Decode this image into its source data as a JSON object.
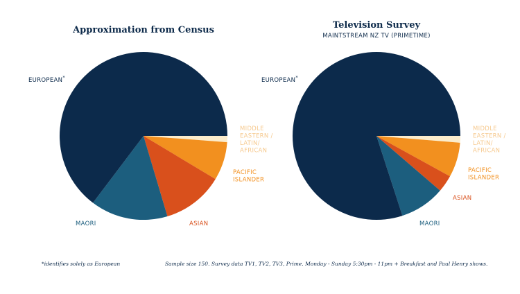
{
  "colors": {
    "european": "#0c2a4b",
    "maori": "#1c5e7e",
    "asian": "#d9501c",
    "pacific": "#f2901f",
    "mela": "#fbeccc",
    "mela_label": "#f6c98e"
  },
  "chart_data": [
    {
      "type": "pie",
      "title": "Approximation from Census",
      "subtitle": "",
      "slices": [
        {
          "key": "mela",
          "label": "MIDDLE EASTERN / LATIN / AFRICAN",
          "label_lines": [
            "MIDDLE",
            "EASTERN /",
            "LATIN/",
            "AFRICAN"
          ],
          "value": 1.2
        },
        {
          "key": "pacific",
          "label": "PACIFIC ISLANDER",
          "label_lines": [
            "PACIFIC",
            "ISLANDER"
          ],
          "value": 7.4
        },
        {
          "key": "asian",
          "label": "ASIAN",
          "label_lines": [
            "ASIAN"
          ],
          "value": 11.8
        },
        {
          "key": "maori",
          "label": "MAORI",
          "label_lines": [
            "MAORI"
          ],
          "value": 14.9
        },
        {
          "key": "european",
          "label": "EUROPEAN*",
          "label_lines": [
            "EUROPEAN"
          ],
          "value": 64.7
        }
      ]
    },
    {
      "type": "pie",
      "title": "Television Survey",
      "subtitle": "MAINTSTREAM NZ TV (PRIMETIME)",
      "slices": [
        {
          "key": "mela",
          "label": "MIDDLE EASTERN / LATIN / AFRICAN",
          "label_lines": [
            "MIDDLE",
            "EASTERN /",
            "LATIN/",
            "AFRICAN"
          ],
          "value": 1.3
        },
        {
          "key": "pacific",
          "label": "PACIFIC ISLANDER",
          "label_lines": [
            "PACIFIC",
            "ISLANDER"
          ],
          "value": 6.7
        },
        {
          "key": "asian",
          "label": "ASIAN",
          "label_lines": [
            "ASIAN"
          ],
          "value": 3.3
        },
        {
          "key": "maori",
          "label": "MAORI",
          "label_lines": [
            "MAORI"
          ],
          "value": 8.7
        },
        {
          "key": "european",
          "label": "EUROPEAN*",
          "label_lines": [
            "EUROPEAN"
          ],
          "value": 80.0
        }
      ]
    }
  ],
  "footnotes": {
    "asterisk": "*identifies solely as European",
    "sample": "Sample size 150. Survey data TV1, TV2, TV3, Prime. Monday - Sunday 5:30pm - 11pm + Breakfast and Paul Henry shows."
  }
}
